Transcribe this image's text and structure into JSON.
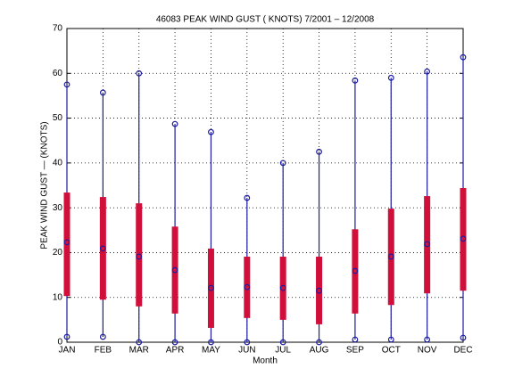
{
  "chart_data": {
    "type": "range",
    "title": "46083  PEAK WIND GUST ( KNOTS) 7/2001 – 12/2008",
    "x_label": "Month",
    "y_label": "PEAK WIND GUST — (KNOTS)",
    "categories": [
      "JAN",
      "FEB",
      "MAR",
      "APR",
      "MAY",
      "JUN",
      "JUL",
      "AUG",
      "SEP",
      "OCT",
      "NOV",
      "DEC"
    ],
    "max": [
      57.5,
      55.7,
      60,
      48.7,
      46.9,
      32.2,
      40,
      42.5,
      58.4,
      59,
      60.4,
      63.6
    ],
    "min": [
      1.2,
      1.2,
      0,
      0,
      0,
      0,
      0,
      0,
      0.6,
      0.6,
      0.6,
      1
    ],
    "mean": [
      22.3,
      20.9,
      19.1,
      16.1,
      12.1,
      12.3,
      12.1,
      11.5,
      15.9,
      19.1,
      21.9,
      23.1
    ],
    "bar_low": [
      10.3,
      9.5,
      8,
      6.4,
      3.2,
      5.4,
      5,
      4,
      6.4,
      8.3,
      10.9,
      11.5
    ],
    "bar_high": [
      33.4,
      32.4,
      31,
      25.8,
      20.9,
      19.1,
      19.1,
      19.1,
      25.2,
      29.8,
      32.6,
      34.4
    ],
    "line_color": "#1c1ca0",
    "bar_color": "#d0103a",
    "ylim": [
      0,
      70
    ],
    "yticks": [
      0,
      10,
      20,
      30,
      40,
      50,
      60,
      70
    ],
    "grid": true
  }
}
